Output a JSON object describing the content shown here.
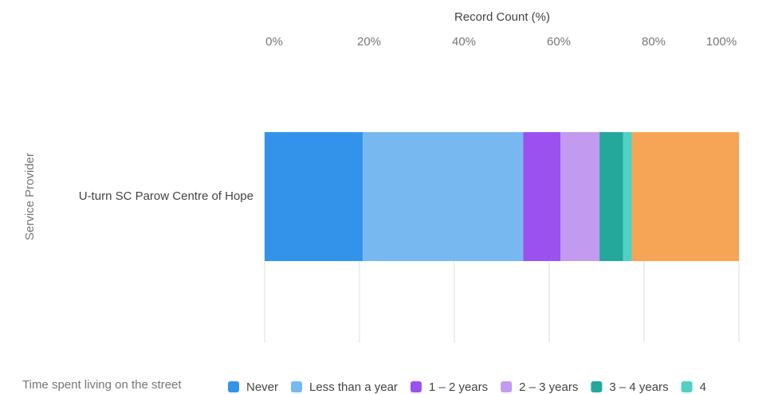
{
  "chart_data": {
    "type": "stacked_bar_horizontal",
    "x_label": "Record Count (%)",
    "y_label": "Service Provider",
    "categories": [
      "U-turn SC Parow Centre of Hope"
    ],
    "xlim": [
      0,
      100
    ],
    "xticks": [
      {
        "value": 0,
        "label": "0%"
      },
      {
        "value": 20,
        "label": "20%"
      },
      {
        "value": 40,
        "label": "40%"
      },
      {
        "value": 60,
        "label": "60%"
      },
      {
        "value": 80,
        "label": "80%"
      },
      {
        "value": 100,
        "label": "100%"
      }
    ],
    "grid": true,
    "legend_title": "Time spent living on the street",
    "series": [
      {
        "name": "Never",
        "color": "#3393ea",
        "values": [
          20.7
        ]
      },
      {
        "name": "Less than a year",
        "color": "#77b8f0",
        "values": [
          33.8
        ]
      },
      {
        "name": "1 – 2 years",
        "color": "#9b51ef",
        "values": [
          7.9
        ]
      },
      {
        "name": "2 – 3 years",
        "color": "#c29af0",
        "values": [
          8.2
        ]
      },
      {
        "name": "3 – 4 years",
        "color": "#23a89b",
        "values": [
          5.0
        ]
      },
      {
        "name": "4",
        "color": "#4fd1c5",
        "values": [
          1.8
        ]
      },
      {
        "name": null,
        "color": "#f6a455",
        "values": [
          22.6
        ]
      }
    ]
  }
}
